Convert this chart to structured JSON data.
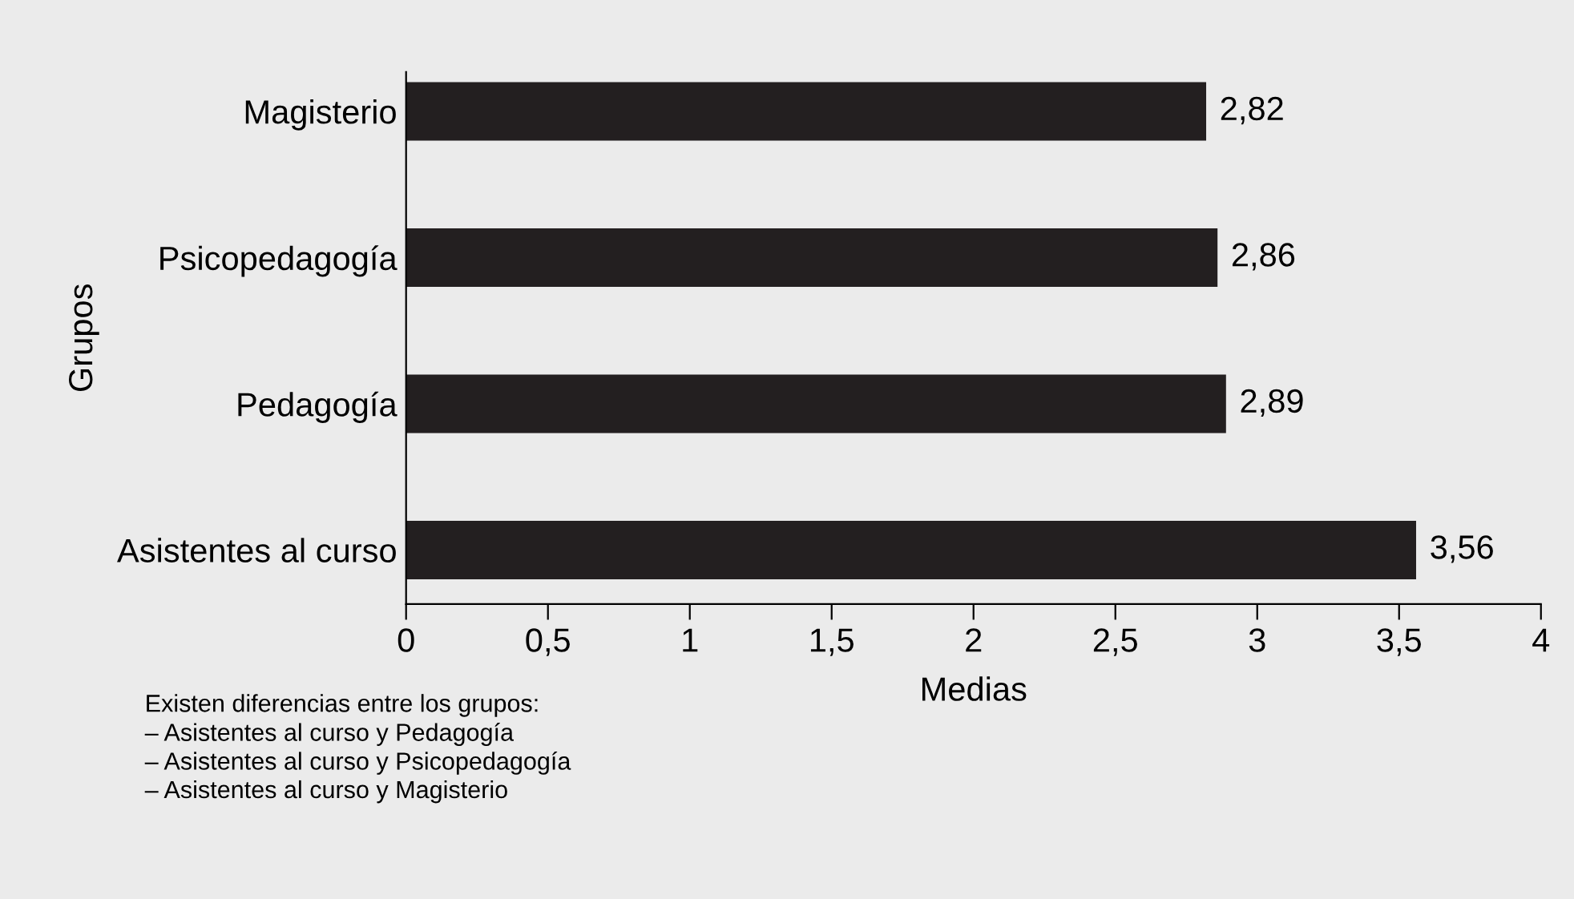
{
  "chart_data": {
    "type": "bar",
    "orientation": "horizontal",
    "xlabel": "Medias",
    "ylabel": "Grupos",
    "categories": [
      "Magisterio",
      "Psicopedagogía",
      "Pedagogía",
      "Asistentes al curso"
    ],
    "values": [
      2.82,
      2.86,
      2.89,
      3.56
    ],
    "value_labels": [
      "2,82",
      "2,86",
      "2,89",
      "3,56"
    ],
    "color": "#231f20",
    "xlim": [
      0,
      4
    ],
    "xticks": [
      0,
      {
        "value": 0.5,
        "label": "0,5"
      },
      1,
      {
        "value": 1.5,
        "label": "1,5"
      },
      2,
      {
        "value": 2.5,
        "label": "2,5"
      },
      3,
      {
        "value": 3.5,
        "label": "3,5"
      },
      4
    ],
    "grid": false,
    "legend": false,
    "annotations": [
      "Existen diferencias entre los grupos:",
      "– Asistentes al curso y Pedagogía",
      "– Asistentes al curso y Psicopedagogía",
      "– Asistentes al curso y Magisterio"
    ]
  }
}
